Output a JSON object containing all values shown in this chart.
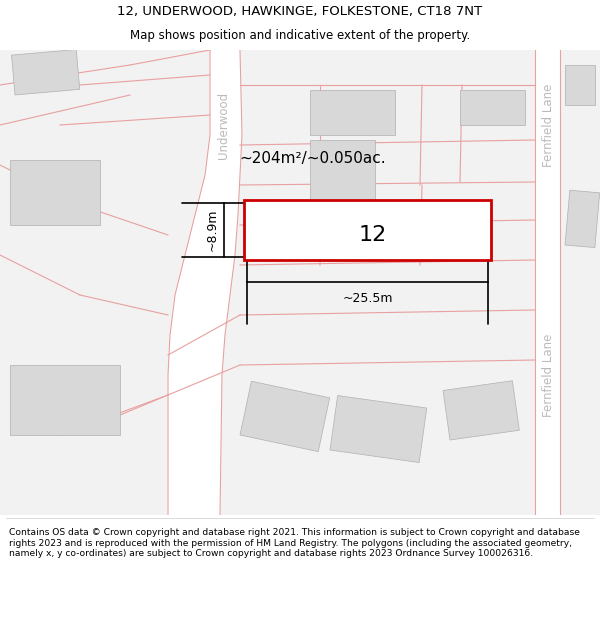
{
  "title_line1": "12, UNDERWOOD, HAWKINGE, FOLKESTONE, CT18 7NT",
  "title_line2": "Map shows position and indicative extent of the property.",
  "footer_text": "Contains OS data © Crown copyright and database right 2021. This information is subject to Crown copyright and database rights 2023 and is reproduced with the permission of HM Land Registry. The polygons (including the associated geometry, namely x, y co-ordinates) are subject to Crown copyright and database rights 2023 Ordnance Survey 100026316.",
  "map_bg": "#f0f0f0",
  "building_color": "#d8d8d8",
  "road_line_color": "#e8a0a0",
  "highlight_rect_color": "#cc0000",
  "area_text": "~204m²/~0.050ac.",
  "width_text": "~25.5m",
  "height_text": "~8.9m",
  "number_text": "12",
  "street_label_left": "Underwood",
  "street_label_right1": "Fernfield Lane",
  "street_label_right2": "Fernfield Lane"
}
